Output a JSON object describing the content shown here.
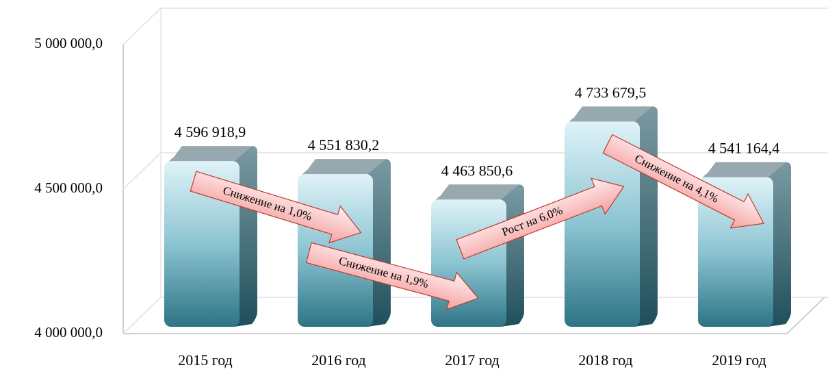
{
  "chart_data": {
    "type": "bar3d",
    "categories": [
      "2015 год",
      "2016 год",
      "2017 год",
      "2018 год",
      "2019 год"
    ],
    "values": [
      4596918.9,
      4551830.2,
      4463850.6,
      4733679.5,
      4541164.4
    ],
    "value_labels": [
      "4 596 918,9",
      "4 551 830,2",
      "4 463 850,6",
      "4 733 679,5",
      "4 541 164,4"
    ],
    "ylim": [
      4000000,
      5000000
    ],
    "yticks": [
      {
        "value": 4000000,
        "label": "4 000 000,0"
      },
      {
        "value": 4500000,
        "label": "4 500 000,0"
      },
      {
        "value": 5000000,
        "label": "5 000 000,0"
      }
    ],
    "grid": true,
    "annotations": [
      "Снижение на 1,0%",
      "Снижение на 1,9%",
      "Рост на 6,0%",
      "Снижение на 4,1%"
    ]
  }
}
